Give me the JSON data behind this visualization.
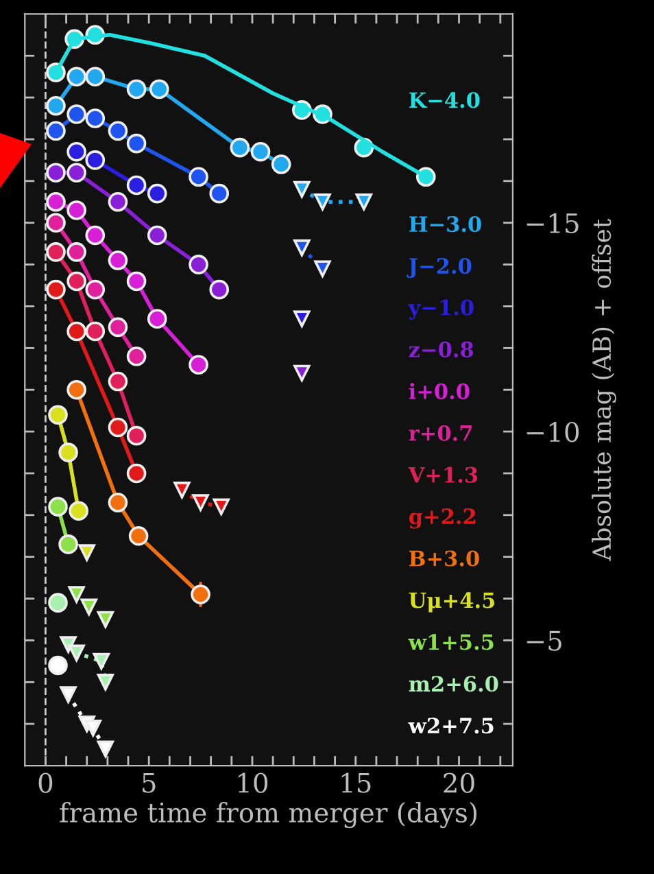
{
  "chart_data": {
    "type": "line",
    "xlabel": "frame time from merger (days)",
    "y2label": "Absolute mag (AB) + offset",
    "xlim": [
      -1,
      22.6
    ],
    "ylim": [
      -2,
      -20
    ],
    "xticks": [
      0,
      {
        "value": 1,
        "label": null
      },
      {
        "value": 2,
        "label": null
      },
      {
        "value": 3,
        "label": null
      },
      {
        "value": 4,
        "label": null
      },
      5,
      {
        "value": 6,
        "label": null
      },
      {
        "value": 7,
        "label": null
      },
      {
        "value": 8,
        "label": null
      },
      {
        "value": 9,
        "label": null
      },
      10,
      {
        "value": 11,
        "label": null
      },
      {
        "value": 12,
        "label": null
      },
      {
        "value": 13,
        "label": null
      },
      {
        "value": 14,
        "label": null
      },
      15,
      {
        "value": 16,
        "label": null
      },
      {
        "value": 17,
        "label": null
      },
      {
        "value": 18,
        "label": null
      },
      {
        "value": 19,
        "label": null
      },
      20,
      {
        "value": 21,
        "label": null
      },
      {
        "value": 22,
        "label": null
      }
    ],
    "yticks": [
      {
        "value": -19,
        "label": null
      },
      {
        "value": -18,
        "label": null
      },
      {
        "value": -17,
        "label": null
      },
      {
        "value": -16,
        "label": null
      },
      {
        "value": -15,
        "label": "−15"
      },
      {
        "value": -14,
        "label": null
      },
      {
        "value": -13,
        "label": null
      },
      {
        "value": -12,
        "label": null
      },
      {
        "value": -11,
        "label": null
      },
      {
        "value": -10,
        "label": "−10"
      },
      {
        "value": -9,
        "label": null
      },
      {
        "value": -8,
        "label": null
      },
      {
        "value": -7,
        "label": null
      },
      {
        "value": -6,
        "label": null
      },
      {
        "value": -5,
        "label": "−5"
      },
      {
        "value": -4,
        "label": null
      },
      {
        "value": -3,
        "label": null
      }
    ],
    "ref_lines": [
      {
        "axis": "x",
        "value": 0,
        "color": "#cccccc",
        "line_style": "dashed"
      }
    ],
    "grid": false,
    "legend": false,
    "series": [
      {
        "name": "K−4.0",
        "color": "#22e0e0",
        "type": "scatter",
        "marker": "circle",
        "x": [
          0.5,
          1.4,
          2.4,
          12.4,
          13.4,
          15.4,
          18.4
        ],
        "values": [
          -18.6,
          -19.4,
          -19.5,
          -17.7,
          -17.6,
          -16.8,
          -16.1
        ]
      },
      {
        "color": "#22e0e0",
        "marker": "none",
        "line_style": "solid",
        "x": [
          0.5,
          1.4,
          3.1,
          5.1,
          7.7,
          11.0,
          13.7,
          16.3,
          18.4
        ],
        "values": [
          -18.6,
          -19.4,
          -19.5,
          -19.3,
          -19.0,
          -18.1,
          -17.5,
          -16.7,
          -16.1
        ]
      },
      {
        "name": "H−3.0",
        "color": "#22a8ee",
        "marker": "circle",
        "line_style": "solid",
        "x": [
          0.5,
          1.5,
          2.4,
          4.4,
          5.5,
          9.4,
          10.4,
          11.4
        ],
        "values": [
          -17.8,
          -18.5,
          -18.5,
          -18.2,
          -18.2,
          -16.8,
          -16.7,
          -16.4
        ]
      },
      {
        "color": "#22a8ee",
        "marker": "triangle",
        "line_style": "dotted",
        "x": [
          12.4,
          13.4,
          15.4
        ],
        "values": [
          -15.8,
          -15.5,
          -15.5
        ]
      },
      {
        "name": "J−2.0",
        "color": "#1f55ee",
        "marker": "circle",
        "line_style": "solid",
        "x": [
          0.5,
          1.5,
          2.4,
          3.5,
          4.4,
          7.4,
          8.4
        ],
        "values": [
          -17.2,
          -17.6,
          -17.5,
          -17.2,
          -16.9,
          -16.1,
          -15.7
        ]
      },
      {
        "color": "#1f55ee",
        "marker": "triangle",
        "line_style": "dotted",
        "x": [
          12.4,
          13.4
        ],
        "values": [
          -14.4,
          -13.9
        ]
      },
      {
        "name": "y−1.0",
        "color": "#2a1fe0",
        "marker": "circle",
        "line_style": "solid",
        "x": [
          1.5,
          2.4,
          4.4,
          5.4
        ],
        "values": [
          -16.7,
          -16.5,
          -15.9,
          -15.7
        ]
      },
      {
        "color": "#2a1fe0",
        "marker": "triangle",
        "line_style": "dotted",
        "x": [
          12.4
        ],
        "values": [
          -12.7
        ]
      },
      {
        "name": "z−0.8",
        "color": "#8a1fd8",
        "marker": "circle",
        "line_style": "solid",
        "x": [
          0.5,
          1.5,
          3.5,
          5.4,
          7.4,
          8.4
        ],
        "values": [
          -16.2,
          -16.2,
          -15.5,
          -14.7,
          -14.0,
          -13.4
        ]
      },
      {
        "color": "#8a1fd8",
        "marker": "triangle",
        "line_style": "dotted",
        "x": [
          12.4
        ],
        "values": [
          -11.4
        ]
      },
      {
        "name": "i+0.0",
        "color": "#d81fd8",
        "marker": "circle",
        "line_style": "solid",
        "x": [
          0.5,
          1.5,
          2.4,
          3.5,
          4.4,
          5.4,
          7.4
        ],
        "values": [
          -15.5,
          -15.3,
          -14.7,
          -14.1,
          -13.6,
          -12.7,
          -11.6
        ]
      },
      {
        "name": "r+0.7",
        "color": "#e01f9a",
        "marker": "circle",
        "line_style": "solid",
        "x": [
          0.5,
          1.5,
          2.4,
          3.5,
          4.4
        ],
        "values": [
          -15.0,
          -14.3,
          -13.4,
          -12.5,
          -11.8
        ]
      },
      {
        "name": "V+1.3",
        "color": "#e0205a",
        "marker": "circle",
        "line_style": "solid",
        "x": [
          0.5,
          1.5,
          2.4,
          3.5,
          4.4
        ],
        "values": [
          -14.3,
          -13.6,
          -12.4,
          -11.2,
          -9.9
        ]
      },
      {
        "name": "g+2.2",
        "color": "#e01a1a",
        "marker": "circle",
        "line_style": "solid",
        "x": [
          0.5,
          1.5,
          3.5,
          4.4
        ],
        "values": [
          -13.4,
          -12.4,
          -10.1,
          -9.0
        ]
      },
      {
        "color": "#e01a1a",
        "marker": "triangle",
        "line_style": "dotted",
        "x": [
          6.6,
          7.5,
          8.5
        ],
        "values": [
          -8.6,
          -8.3,
          -8.2
        ]
      },
      {
        "name": "B+3.0",
        "color": "#f07010",
        "marker": "circle",
        "line_style": "solid",
        "x": [
          1.5,
          3.5,
          4.5,
          7.5
        ],
        "values": [
          -11.0,
          -8.3,
          -7.5,
          -6.1
        ],
        "errors": [
          null,
          null,
          null,
          0.3
        ]
      },
      {
        "name": "Uμ+4.5",
        "color": "#d8e020",
        "marker": "circle",
        "line_style": "solid",
        "x": [
          0.6,
          1.1,
          1.6
        ],
        "values": [
          -10.4,
          -9.5,
          -8.1
        ]
      },
      {
        "color": "#d8e020",
        "marker": "triangle",
        "line_style": "dotted",
        "x": [
          2.0
        ],
        "values": [
          -7.1
        ]
      },
      {
        "name": "w1+5.5",
        "color": "#8ee04a",
        "marker": "circle",
        "line_style": "solid",
        "x": [
          0.6,
          1.1
        ],
        "values": [
          -8.2,
          -7.3
        ]
      },
      {
        "color": "#8ee04a",
        "type": "scatter",
        "marker": "triangle",
        "x": [
          1.5,
          2.1,
          2.9
        ],
        "values": [
          -6.1,
          -5.8,
          -5.5
        ]
      },
      {
        "name": "m2+6.0",
        "color": "#a8f0b0",
        "type": "scatter",
        "marker": "circle",
        "x": [
          0.6
        ],
        "values": [
          -5.9
        ]
      },
      {
        "color": "#a8f0b0",
        "marker": "triangle",
        "line_style": "dotted",
        "x": [
          1.1,
          1.5,
          2.7,
          2.9
        ],
        "values": [
          -4.9,
          -4.7,
          -4.5,
          -4.0
        ]
      },
      {
        "name": "w2+7.5",
        "color": "#ffffff",
        "type": "scatter",
        "marker": "circle",
        "x": [
          0.6
        ],
        "values": [
          -4.4
        ]
      },
      {
        "color": "#ffffff",
        "marker": "triangle",
        "line_style": "dotted",
        "x": [
          1.1,
          2.0,
          2.3,
          2.9
        ],
        "values": [
          -3.7,
          -3.0,
          -2.9,
          -2.4
        ]
      }
    ]
  }
}
